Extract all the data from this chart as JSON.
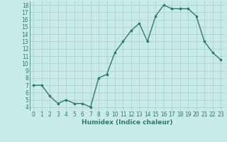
{
  "x": [
    0,
    1,
    2,
    3,
    4,
    5,
    6,
    7,
    8,
    9,
    10,
    11,
    12,
    13,
    14,
    15,
    16,
    17,
    18,
    19,
    20,
    21,
    22,
    23
  ],
  "y": [
    7,
    7,
    5.5,
    4.5,
    5,
    4.5,
    4.5,
    4,
    8,
    8.5,
    11.5,
    13,
    14.5,
    15.5,
    13,
    16.5,
    18,
    17.5,
    17.5,
    17.5,
    16.5,
    13,
    11.5,
    10.5
  ],
  "line_color": "#2d7a6e",
  "marker": "s",
  "markersize": 2,
  "linewidth": 1.0,
  "bg_color": "#c8eae8",
  "grid_color": "#b0d0cc",
  "xlabel": "Humidex (Indice chaleur)",
  "ylim": [
    3.5,
    18.5
  ],
  "xlim": [
    -0.5,
    23.5
  ],
  "yticks": [
    4,
    5,
    6,
    7,
    8,
    9,
    10,
    11,
    12,
    13,
    14,
    15,
    16,
    17,
    18
  ],
  "xticks": [
    0,
    1,
    2,
    3,
    4,
    5,
    6,
    7,
    8,
    9,
    10,
    11,
    12,
    13,
    14,
    15,
    16,
    17,
    18,
    19,
    20,
    21,
    22,
    23
  ],
  "tick_fontsize": 5.5,
  "label_fontsize": 6.5
}
